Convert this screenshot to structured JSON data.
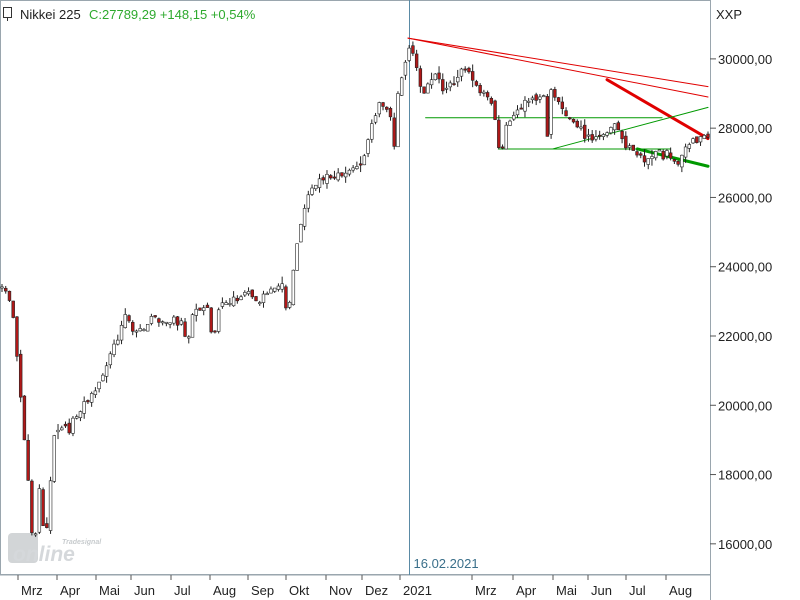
{
  "header": {
    "instrument": "Nikkei 225",
    "quote": "C:27789,29 +148,15 +0,54%",
    "symbol_code": "XXP"
  },
  "watermark": {
    "text_top": "Tradesignal",
    "text_main": "online"
  },
  "colors": {
    "up_text": "#2eaa2e",
    "candle_up": "#ffffff",
    "candle_down": "#b01818",
    "candle_outline": "#222222",
    "resistance": "#e00000",
    "support": "#009900",
    "marker_line": "#5a8aa5",
    "marker_text": "#3a6f8a"
  },
  "chart_data": {
    "type": "candlestick",
    "title": "Nikkei 225",
    "x_axis": {
      "labels": [
        "Mrz",
        "Apr",
        "Mai",
        "Jun",
        "Jul",
        "Aug",
        "Sep",
        "Okt",
        "Nov",
        "Dez",
        "2021",
        "Mrz",
        "Apr",
        "Mai",
        "Jun",
        "Jul",
        "Aug"
      ]
    },
    "y_axis": {
      "ticks": [
        "16000,00",
        "18000,00",
        "20000,00",
        "22000,00",
        "24000,00",
        "26000,00",
        "28000,00",
        "30000,00"
      ],
      "tick_values": [
        16000,
        18000,
        20000,
        22000,
        24000,
        26000,
        28000,
        30000
      ],
      "ylim": [
        15100,
        31700
      ],
      "position": "right"
    },
    "marker": {
      "label": "16.02.2021",
      "date_index": 0.5765
    },
    "price_path": [
      [
        0.0,
        23400
      ],
      [
        0.015,
        22800
      ],
      [
        0.025,
        20500
      ],
      [
        0.035,
        18200
      ],
      [
        0.045,
        16700
      ],
      [
        0.055,
        17800
      ],
      [
        0.065,
        18800
      ],
      [
        0.08,
        19300
      ],
      [
        0.1,
        19600
      ],
      [
        0.12,
        20100
      ],
      [
        0.135,
        20500
      ],
      [
        0.15,
        21300
      ],
      [
        0.162,
        21900
      ],
      [
        0.175,
        22600
      ],
      [
        0.187,
        22100
      ],
      [
        0.2,
        22200
      ],
      [
        0.215,
        22600
      ],
      [
        0.23,
        22400
      ],
      [
        0.245,
        22500
      ],
      [
        0.26,
        22300
      ],
      [
        0.275,
        22700
      ],
      [
        0.29,
        22900
      ],
      [
        0.305,
        22800
      ],
      [
        0.32,
        23000
      ],
      [
        0.335,
        23100
      ],
      [
        0.35,
        23200
      ],
      [
        0.365,
        23000
      ],
      [
        0.38,
        23400
      ],
      [
        0.395,
        23500
      ],
      [
        0.407,
        23200
      ],
      [
        0.415,
        24300
      ],
      [
        0.425,
        25500
      ],
      [
        0.435,
        26200
      ],
      [
        0.447,
        26400
      ],
      [
        0.46,
        26600
      ],
      [
        0.475,
        26700
      ],
      [
        0.49,
        26700
      ],
      [
        0.503,
        26900
      ],
      [
        0.515,
        27300
      ],
      [
        0.525,
        28200
      ],
      [
        0.535,
        28800
      ],
      [
        0.545,
        28500
      ],
      [
        0.555,
        28300
      ],
      [
        0.565,
        29400
      ],
      [
        0.575,
        30300
      ],
      [
        0.585,
        30000
      ],
      [
        0.595,
        28900
      ],
      [
        0.605,
        29300
      ],
      [
        0.615,
        29600
      ],
      [
        0.625,
        29000
      ],
      [
        0.635,
        29200
      ],
      [
        0.65,
        29700
      ],
      [
        0.662,
        29600
      ],
      [
        0.675,
        29100
      ],
      [
        0.69,
        28800
      ],
      [
        0.7,
        28300
      ],
      [
        0.71,
        27900
      ],
      [
        0.72,
        28200
      ],
      [
        0.732,
        28600
      ],
      [
        0.745,
        28800
      ],
      [
        0.76,
        28900
      ],
      [
        0.775,
        29100
      ],
      [
        0.79,
        28700
      ],
      [
        0.805,
        28300
      ],
      [
        0.815,
        28000
      ],
      [
        0.825,
        27800
      ],
      [
        0.84,
        27700
      ],
      [
        0.855,
        27900
      ],
      [
        0.87,
        28100
      ],
      [
        0.885,
        27500
      ],
      [
        0.895,
        27300
      ],
      [
        0.91,
        27100
      ],
      [
        0.925,
        27400
      ],
      [
        0.945,
        27200
      ],
      [
        0.96,
        27000
      ],
      [
        0.975,
        27600
      ],
      [
        0.99,
        27700
      ],
      [
        1.0,
        27789
      ]
    ],
    "dips": [
      [
        0.065,
        17600
      ],
      [
        0.06,
        16400
      ],
      [
        0.045,
        16200
      ],
      [
        0.095,
        19100
      ],
      [
        0.262,
        21900
      ],
      [
        0.298,
        22000
      ],
      [
        0.405,
        22800
      ],
      [
        0.555,
        27400
      ],
      [
        0.707,
        27300
      ],
      [
        0.773,
        27700
      ],
      [
        0.937,
        27000
      ],
      [
        0.955,
        26900
      ]
    ],
    "trendlines": [
      {
        "kind": "resistance",
        "width": "thin",
        "points": [
          [
            0.575,
            30600
          ],
          [
            1.0,
            29200
          ]
        ]
      },
      {
        "kind": "resistance",
        "width": "thin",
        "points": [
          [
            0.575,
            30600
          ],
          [
            1.0,
            28900
          ]
        ]
      },
      {
        "kind": "resistance",
        "width": "thick",
        "points": [
          [
            0.857,
            29400
          ],
          [
            1.0,
            27700
          ]
        ]
      },
      {
        "kind": "support",
        "width": "thin",
        "points": [
          [
            0.6,
            28300
          ],
          [
            0.935,
            28300
          ]
        ]
      },
      {
        "kind": "support",
        "width": "thin",
        "points": [
          [
            0.703,
            27400
          ],
          [
            0.947,
            27400
          ]
        ]
      },
      {
        "kind": "support",
        "width": "thin",
        "points": [
          [
            0.78,
            27400
          ],
          [
            1.0,
            28600
          ]
        ]
      },
      {
        "kind": "support",
        "width": "thick",
        "points": [
          [
            0.9,
            27400
          ],
          [
            1.0,
            26900
          ]
        ]
      }
    ],
    "grid": false,
    "legend": "none"
  }
}
